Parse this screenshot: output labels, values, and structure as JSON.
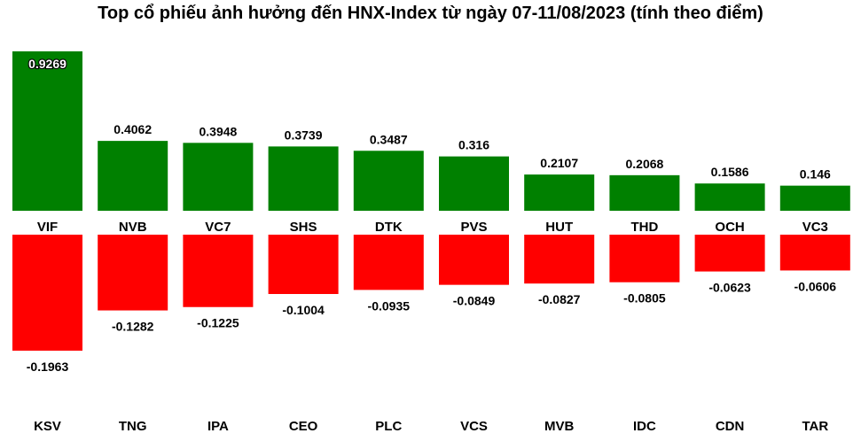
{
  "chart_data": {
    "type": "bar",
    "title": "Top cổ phiếu ảnh hưởng đến HNX-Index từ ngày 07-11/08/2023 (tính theo điểm)",
    "colors": {
      "positive": "#008000",
      "negative": "#ff0000"
    },
    "ylim": [
      -0.2,
      0.95
    ],
    "series": [
      {
        "categories": [
          "VIF",
          "NVB",
          "VC7",
          "SHS",
          "DTK",
          "PVS",
          "HUT",
          "THD",
          "OCH",
          "VC3"
        ],
        "values": [
          0.9269,
          0.4062,
          0.3948,
          0.3739,
          0.3487,
          0.316,
          0.2107,
          0.2068,
          0.1586,
          0.146
        ],
        "labels": [
          "0.9269",
          "0.4062",
          "0.3948",
          "0.3739",
          "0.3487",
          "0.316",
          "0.2107",
          "0.2068",
          "0.1586",
          "0.146"
        ]
      },
      {
        "categories": [
          "KSV",
          "TNG",
          "IPA",
          "CEO",
          "PLC",
          "VCS",
          "MVB",
          "IDC",
          "CDN",
          "TAR"
        ],
        "values": [
          -0.1963,
          -0.1282,
          -0.1225,
          -0.1004,
          -0.0935,
          -0.0849,
          -0.0827,
          -0.0805,
          -0.0623,
          -0.0606
        ],
        "labels": [
          "-0.1963",
          "-0.1282",
          "-0.1225",
          "-0.1004",
          "-0.0935",
          "-0.0849",
          "-0.0827",
          "-0.0805",
          "-0.0623",
          "-0.0606"
        ]
      }
    ]
  }
}
